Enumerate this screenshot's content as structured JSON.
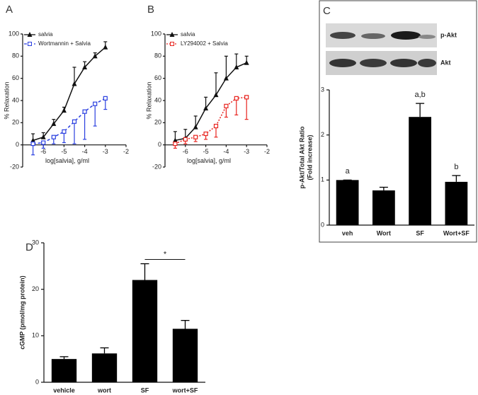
{
  "chart_data": [
    {
      "type": "line",
      "panel": "A",
      "xlabel": "log[salvia], g/ml",
      "ylabel": "% Relaxation",
      "x": [
        -6.5,
        -6,
        -5.5,
        -5,
        -4.5,
        -4,
        -3.5,
        -3
      ],
      "xlim": [
        -7,
        -2
      ],
      "xticks": [
        -6,
        -5,
        -4,
        -3,
        -2
      ],
      "ylim": [
        -20,
        100
      ],
      "yticks": [
        -20,
        0,
        20,
        40,
        60,
        80,
        100
      ],
      "series": [
        {
          "name": "salvia",
          "color": "#111111",
          "marker": "triangle",
          "line": "solid",
          "error_side": "up",
          "values": [
            4,
            7,
            19,
            31,
            55,
            70,
            80,
            88
          ],
          "errors": [
            6,
            4,
            4,
            3,
            15,
            5,
            3,
            5
          ]
        },
        {
          "name": "Wortmannin + Salvia",
          "color": "#2a3fe0",
          "marker": "square",
          "line": "dashed",
          "error_side": "down",
          "values": [
            1,
            2,
            7,
            12,
            21,
            30,
            37,
            42
          ],
          "errors": [
            10,
            5,
            6,
            10,
            20,
            25,
            20,
            10
          ]
        }
      ]
    },
    {
      "type": "line",
      "panel": "B",
      "xlabel": "log[salvia], g/ml",
      "ylabel": "% Relaxation",
      "x": [
        -6.5,
        -6,
        -5.5,
        -5,
        -4.5,
        -4,
        -3.5,
        -3
      ],
      "xlim": [
        -7,
        -2
      ],
      "xticks": [
        -6,
        -5,
        -4,
        -3,
        -2
      ],
      "ylim": [
        -20,
        100
      ],
      "yticks": [
        -20,
        0,
        20,
        40,
        60,
        80,
        100
      ],
      "series": [
        {
          "name": "salvia",
          "color": "#111111",
          "marker": "triangle",
          "line": "solid",
          "error_side": "up",
          "values": [
            4,
            6,
            16,
            33,
            45,
            60,
            70,
            74
          ],
          "errors": [
            8,
            8,
            10,
            10,
            20,
            20,
            12,
            6
          ]
        },
        {
          "name": "LY294002 + Salvia",
          "color": "#e8231e",
          "marker": "square",
          "line": "dotted",
          "error_side": "down",
          "values": [
            1,
            5,
            7,
            10,
            17,
            35,
            42,
            43
          ],
          "errors": [
            4,
            4,
            4,
            5,
            10,
            10,
            15,
            20
          ]
        }
      ]
    },
    {
      "type": "bar",
      "panel": "C",
      "ylabel": [
        "p-Akt/Total Akt Ratio",
        "(Fold increase)"
      ],
      "blot_labels": [
        "p-Akt",
        "Akt"
      ],
      "categories": [
        "veh",
        "Wort",
        "SF",
        "Wort+SF"
      ],
      "values": [
        1.0,
        0.77,
        2.4,
        0.96
      ],
      "errors": [
        0,
        0.07,
        0.3,
        0.14
      ],
      "bar_labels": [
        "a",
        null,
        "a,b",
        "b"
      ],
      "color": "#000000",
      "ylim": [
        0,
        3
      ],
      "yticks": [
        0,
        1,
        2,
        3
      ]
    },
    {
      "type": "bar",
      "panel": "D",
      "ylabel": [
        "cGMP (pmol/mg protein)"
      ],
      "categories": [
        "vehicle",
        "wort",
        "SF",
        "wort+SF"
      ],
      "values": [
        5,
        6.2,
        22,
        11.5
      ],
      "errors": [
        0.5,
        1.2,
        3.5,
        1.8
      ],
      "significance": {
        "label": "*",
        "categories": [
          2,
          3
        ]
      },
      "color": "#000000",
      "ylim": [
        0,
        30
      ],
      "yticks": [
        0,
        10,
        20,
        30
      ]
    }
  ]
}
